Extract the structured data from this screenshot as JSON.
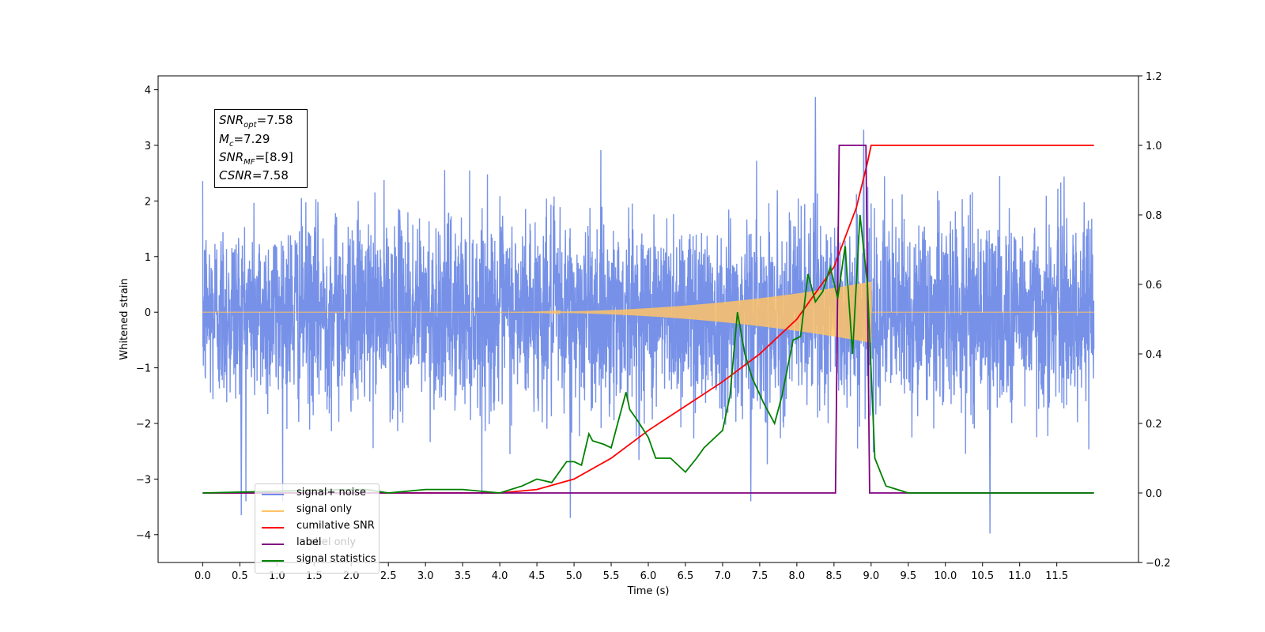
{
  "chart_data": {
    "type": "line",
    "title": "",
    "xlabel": "Time (s)",
    "ylabel": "Whitened strain",
    "xlim": [
      -0.6,
      12.6
    ],
    "ylim": [
      -4.5,
      4.25
    ],
    "y2lim": [
      -0.2,
      1.2
    ],
    "x_ticks": [
      "0.0",
      "0.5",
      "1.0",
      "1.5",
      "2.0",
      "2.5",
      "3.0",
      "3.5",
      "4.0",
      "4.5",
      "5.0",
      "5.5",
      "6.0",
      "6.5",
      "7.0",
      "7.5",
      "8.0",
      "8.5",
      "9.0",
      "9.5",
      "10.0",
      "10.5",
      "11.0",
      "11.5"
    ],
    "y_ticks": [
      "−4",
      "−3",
      "−2",
      "−1",
      "0",
      "1",
      "2",
      "3",
      "4"
    ],
    "y2_ticks": [
      "−0.2",
      "0.0",
      "0.2",
      "0.4",
      "0.6",
      "0.8",
      "1.0",
      "1.2"
    ],
    "legend_position": "lower-left",
    "annotation": {
      "snr_opt": "7.58",
      "mc": "7.29",
      "snr_mf": "[8.9]",
      "csnr": "7.58"
    },
    "series": [
      {
        "name": "signal+ noise",
        "color": "#6f8be6",
        "axis": "left",
        "description_values": "Gaussian-like noise, amplitude ~±2.5, spikes to 3.87 at 8.25 s and -3.98 at 10.6 s"
      },
      {
        "name": "signal only",
        "color": "#ffc266",
        "axis": "left",
        "chirp_start": 4.0,
        "chirp_end": 9.0,
        "peak_amplitude": 0.55
      },
      {
        "name": "cumilative SNR",
        "color": "#ff0000",
        "axis": "right",
        "x": [
          0.0,
          4.0,
          4.5,
          5.0,
          5.5,
          6.0,
          6.5,
          7.0,
          7.5,
          8.0,
          8.5,
          8.8,
          8.95,
          9.0,
          12.0
        ],
        "y": [
          0.0,
          0.0,
          0.01,
          0.04,
          0.1,
          0.18,
          0.25,
          0.32,
          0.4,
          0.5,
          0.65,
          0.82,
          0.95,
          1.0,
          1.0
        ]
      },
      {
        "name": "label",
        "color": "#800080",
        "axis": "right",
        "x": [
          0.0,
          8.52,
          8.57,
          8.93,
          8.98,
          12.0
        ],
        "y": [
          0.0,
          0.0,
          1.0,
          1.0,
          0.0,
          0.0
        ]
      },
      {
        "name": "signal statistics",
        "color": "#008000",
        "axis": "right",
        "x": [
          0.0,
          2.0,
          2.2,
          2.5,
          3.0,
          3.5,
          4.0,
          4.3,
          4.5,
          4.7,
          4.9,
          5.0,
          5.1,
          5.2,
          5.25,
          5.4,
          5.5,
          5.6,
          5.7,
          5.75,
          5.85,
          6.0,
          6.1,
          6.3,
          6.5,
          6.65,
          6.75,
          6.85,
          7.0,
          7.1,
          7.2,
          7.3,
          7.4,
          7.55,
          7.7,
          7.8,
          7.95,
          8.05,
          8.15,
          8.25,
          8.35,
          8.45,
          8.55,
          8.65,
          8.75,
          8.85,
          8.95,
          9.05,
          9.2,
          9.5,
          10.0,
          12.0
        ],
        "y": [
          0.0,
          0.01,
          0.01,
          0.0,
          0.01,
          0.01,
          0.0,
          0.02,
          0.04,
          0.03,
          0.09,
          0.09,
          0.08,
          0.17,
          0.15,
          0.14,
          0.13,
          0.21,
          0.29,
          0.24,
          0.21,
          0.16,
          0.1,
          0.1,
          0.06,
          0.1,
          0.13,
          0.15,
          0.18,
          0.28,
          0.52,
          0.4,
          0.33,
          0.26,
          0.2,
          0.28,
          0.44,
          0.45,
          0.63,
          0.55,
          0.58,
          0.65,
          0.56,
          0.71,
          0.4,
          0.8,
          0.6,
          0.1,
          0.02,
          0.0,
          0.0,
          0.0
        ]
      }
    ]
  },
  "legend": {
    "items": [
      {
        "label": "signal+ noise",
        "color": "#6f8be6"
      },
      {
        "label": "signal only",
        "color": "#ffc266"
      },
      {
        "label": "cumilative SNR",
        "color": "#ff0000"
      },
      {
        "label": "label",
        "color": "#800080"
      },
      {
        "label": "signal statistics",
        "color": "#008000"
      }
    ],
    "ghost_label": "label only"
  }
}
